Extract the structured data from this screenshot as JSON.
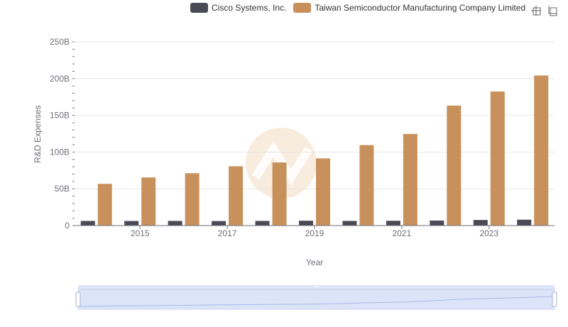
{
  "colors": {
    "series1": "#4a4a57",
    "series2": "#c8915c",
    "axis": "#6e7079",
    "grid": "#e6e6e6",
    "watermark": "#f6e7d6",
    "zoom_fill": "#dbe4f8"
  },
  "legend": {
    "items": [
      {
        "label": "Cisco Systems, Inc."
      },
      {
        "label": "Taiwan Semiconductor Manufacturing Company Limited"
      }
    ]
  },
  "toolbar": {
    "icons": [
      "zoom-icon",
      "restore-icon"
    ]
  },
  "chart_data": {
    "type": "bar",
    "categories": [
      "2014",
      "2015",
      "2016",
      "2017",
      "2018",
      "2019",
      "2020",
      "2021",
      "2022",
      "2023",
      "2024"
    ],
    "x_tick_labels": [
      "2015",
      "2017",
      "2019",
      "2021",
      "2023"
    ],
    "y_tick_labels": [
      "0",
      "50B",
      "100B",
      "150B",
      "200B",
      "250B"
    ],
    "ylim": [
      0,
      250
    ],
    "y_unit": "B",
    "xlabel": "Year",
    "ylabel": "R&D Expenses",
    "grid": true,
    "legend_position": "top-right",
    "series": [
      {
        "name": "Cisco Systems, Inc.",
        "values": [
          6.3,
          6.2,
          6.3,
          6.1,
          6.3,
          6.6,
          6.3,
          6.5,
          6.8,
          7.6,
          8.0
        ]
      },
      {
        "name": "Taiwan Semiconductor Manufacturing Company Limited",
        "values": [
          56.8,
          65.5,
          71.2,
          80.7,
          85.9,
          91.4,
          109.5,
          124.7,
          163.3,
          182.4,
          204.2
        ]
      }
    ]
  }
}
